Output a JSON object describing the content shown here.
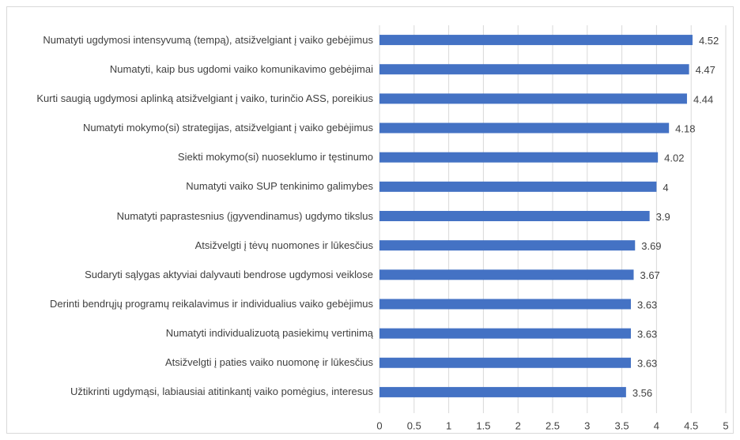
{
  "chart_data": {
    "type": "bar",
    "orientation": "horizontal",
    "categories": [
      "Numatyti ugdymosi intensyvumą (tempą), atsižvelgiant į vaiko gebėjimus",
      "Numatyti, kaip bus ugdomi vaiko komunikavimo gebėjimai",
      "Kurti saugią ugdymosi aplinką atsižvelgiant į vaiko, turinčio ASS, poreikius",
      "Numatyti mokymo(si) strategijas, atsižvelgiant į vaiko gebėjimus",
      "Siekti mokymo(si) nuoseklumo ir tęstinumo",
      "Numatyti vaiko SUP tenkinimo galimybes",
      "Numatyti paprastesnius (įgyvendinamus) ugdymo tikslus",
      "Atsižvelgti į tėvų nuomones ir lūkesčius",
      "Sudaryti sąlygas aktyviai dalyvauti bendrose ugdymosi veiklose",
      "Derinti bendrųjų programų reikalavimus ir individualius vaiko gebėjimus",
      "Numatyti individualizuotą pasiekimų vertinimą",
      "Atsižvelgti į paties vaiko nuomonę ir lūkesčius",
      "Užtikrinti ugdymąsi, labiausiai atitinkantį vaiko pomėgius, interesus"
    ],
    "values": [
      4.52,
      4.47,
      4.44,
      4.18,
      4.02,
      4,
      3.9,
      3.69,
      3.67,
      3.63,
      3.63,
      3.63,
      3.56
    ],
    "color": "#4472c4",
    "xlim": [
      0,
      5
    ],
    "xticks": [
      0,
      0.5,
      1,
      1.5,
      2,
      2.5,
      3,
      3.5,
      4,
      4.5,
      5
    ],
    "grid": true
  }
}
